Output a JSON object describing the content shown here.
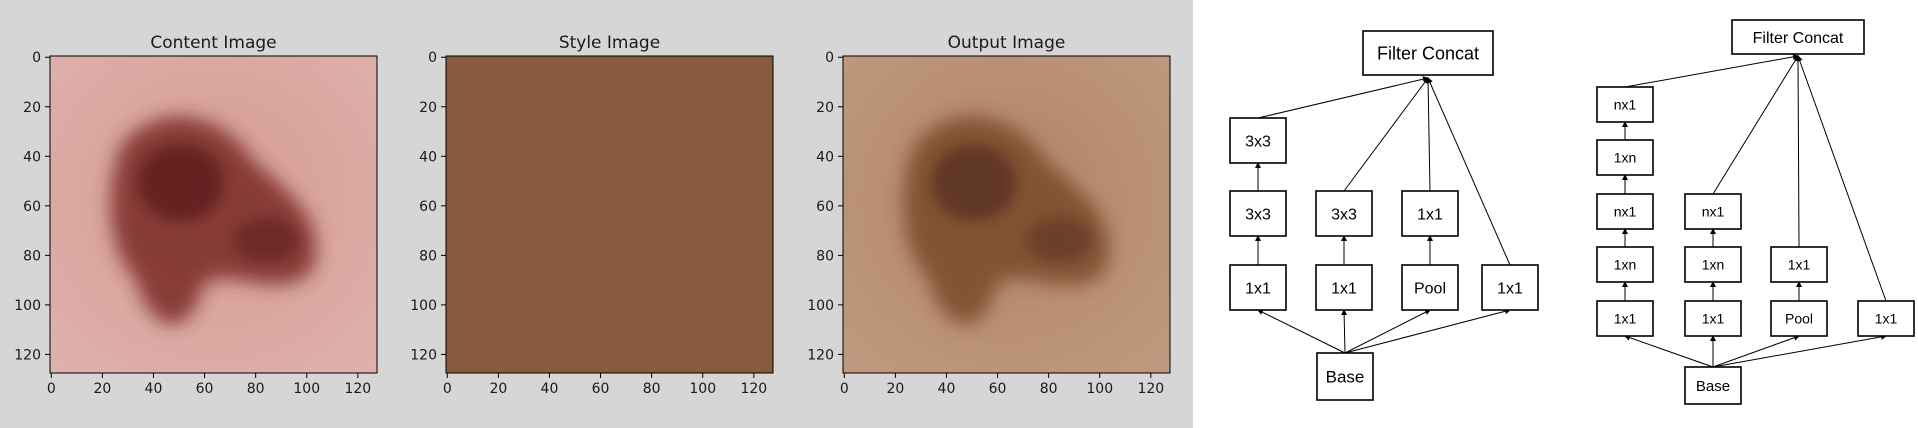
{
  "plots": [
    {
      "id": "content",
      "title": "Content Image",
      "image_kind": "skin-lesion-pink",
      "colors": {
        "background": "#d9a09a",
        "lesion": "#7a2c28",
        "lesion_dark": "#5c1f1e"
      }
    },
    {
      "id": "style",
      "title": "Style Image",
      "image_kind": "flat-brown",
      "colors": {
        "background": "#8a5a3f"
      }
    },
    {
      "id": "output",
      "title": "Output Image",
      "image_kind": "skin-lesion-brown",
      "colors": {
        "background": "#b88c70",
        "lesion": "#7a4a2c",
        "lesion_dark": "#5a3320"
      }
    }
  ],
  "axes": {
    "x_ticks": [
      "0",
      "20",
      "40",
      "60",
      "80",
      "100",
      "120"
    ],
    "y_ticks": [
      "0",
      "20",
      "40",
      "60",
      "80",
      "100",
      "120"
    ],
    "range": [
      0,
      128
    ]
  },
  "diagrams": [
    {
      "id": "inception-3x3",
      "top_label": "Filter Concat",
      "base_label": "Base",
      "branches": [
        [
          "1x1",
          "3x3",
          "3x3"
        ],
        [
          "1x1",
          "3x3"
        ],
        [
          "Pool",
          "1x1"
        ],
        [
          "1x1"
        ]
      ]
    },
    {
      "id": "inception-1xn",
      "top_label": "Filter Concat",
      "base_label": "Base",
      "branches": [
        [
          "1x1",
          "1xn",
          "nx1",
          "1xn",
          "nx1"
        ],
        [
          "1x1",
          "1xn",
          "nx1"
        ],
        [
          "Pool",
          "1x1"
        ],
        [
          "1x1"
        ]
      ]
    }
  ]
}
